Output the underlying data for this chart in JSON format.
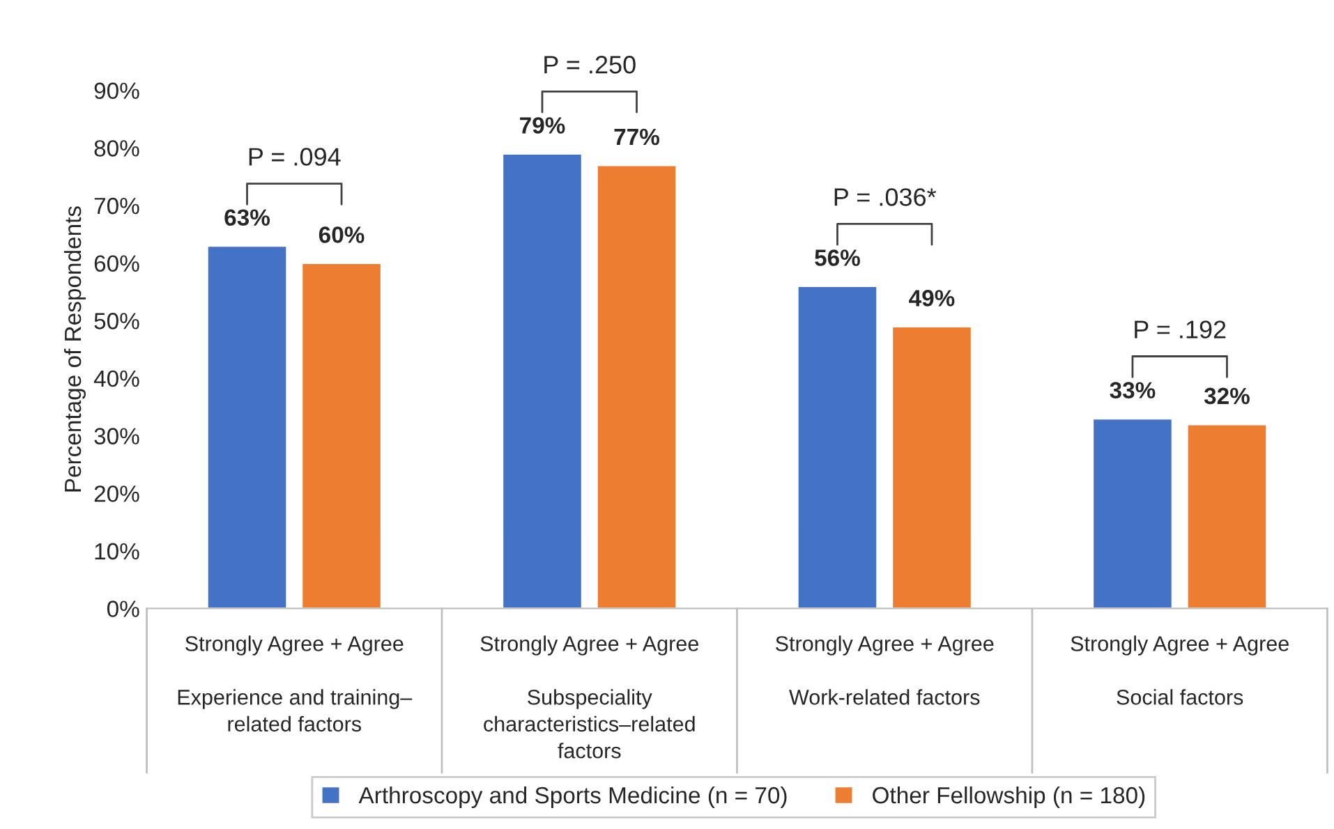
{
  "chart_data": {
    "type": "bar",
    "ylabel": "Percentage of Respondents",
    "categories": [
      "Strongly Agree + Agree\n\nExperience and training–\nrelated factors",
      "Strongly Agree + Agree\n\nSubspeciality\ncharacteristics–related\nfactors",
      "Strongly Agree + Agree\n\nWork-related factors",
      "Strongly Agree + Agree\n\nSocial factors"
    ],
    "series": [
      {
        "name": "Arthroscopy and Sports Medicine (n = 70)",
        "color": "#4472c4",
        "values": [
          63,
          79,
          56,
          33
        ],
        "value_labels": [
          "63%",
          "79%",
          "56%",
          "33%"
        ]
      },
      {
        "name": "Other Fellowship (n = 180)",
        "color": "#ed7d31",
        "values": [
          60,
          77,
          49,
          32
        ],
        "value_labels": [
          "60%",
          "77%",
          "49%",
          "32%"
        ]
      }
    ],
    "ylim": [
      0,
      90
    ],
    "yticks": [
      {
        "value": 0,
        "label": "0%"
      },
      {
        "value": 10,
        "label": "10%"
      },
      {
        "value": 20,
        "label": "20%"
      },
      {
        "value": 30,
        "label": "30%"
      },
      {
        "value": 40,
        "label": "40%"
      },
      {
        "value": 50,
        "label": "50%"
      },
      {
        "value": 60,
        "label": "60%"
      },
      {
        "value": 70,
        "label": "70%"
      },
      {
        "value": 80,
        "label": "80%"
      },
      {
        "value": 90,
        "label": "90%"
      }
    ],
    "annotations": [
      "P = .094",
      "P = .250",
      "P = .036*",
      "P = .192"
    ],
    "grid": false,
    "legend": "bottom"
  }
}
